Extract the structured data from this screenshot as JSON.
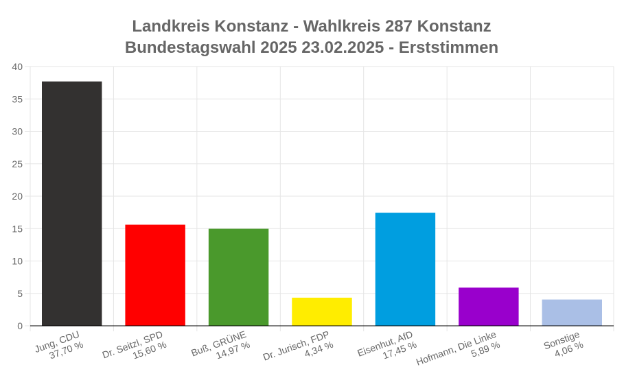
{
  "chart_data": {
    "type": "bar",
    "title_lines": [
      "Landkreis Konstanz - Wahlkreis 287 Konstanz",
      "Bundestagswahl 2025 23.02.2025  - Erststimmen"
    ],
    "categories": [
      [
        "Jung, CDU",
        "37,70 %"
      ],
      [
        "Dr. Seitzl, SPD",
        "15,60 %"
      ],
      [
        "Buß, GRÜNE",
        "14,97 %"
      ],
      [
        "Dr. Jurisch, FDP",
        "4,34 %"
      ],
      [
        "Eisenhut, AfD",
        "17,45 %"
      ],
      [
        "Hofmann, Die Linke",
        "5,89 %"
      ],
      [
        "Sonstige",
        "4,06 %"
      ]
    ],
    "values": [
      37.7,
      15.6,
      14.97,
      4.34,
      17.45,
      5.89,
      4.06
    ],
    "colors": [
      "#333130",
      "#ff0000",
      "#4a992c",
      "#ffed00",
      "#009ee0",
      "#9900cc",
      "#aabfe6"
    ],
    "ylim": [
      0,
      40
    ],
    "yticks": [
      0,
      5,
      10,
      15,
      20,
      25,
      30,
      35,
      40
    ],
    "grid": true,
    "xlabel": "",
    "ylabel": ""
  }
}
